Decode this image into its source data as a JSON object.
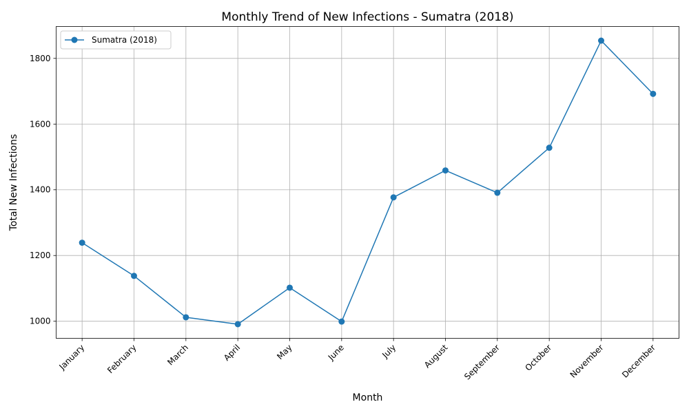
{
  "chart_data": {
    "type": "line",
    "title": "Monthly Trend of New Infections - Sumatra (2018)",
    "xlabel": "Month",
    "ylabel": "Total New Infections",
    "categories": [
      "January",
      "February",
      "March",
      "April",
      "May",
      "June",
      "July",
      "August",
      "September",
      "October",
      "November",
      "December"
    ],
    "series": [
      {
        "name": "Sumatra (2018)",
        "color": "#1f77b4",
        "marker": "circle",
        "values": [
          1239,
          1138,
          1012,
          991,
          1102,
          999,
          1377,
          1459,
          1391,
          1528,
          1854,
          1692
        ]
      }
    ],
    "ylim": [
      948,
      1897
    ],
    "yticks": [
      1000,
      1200,
      1400,
      1600,
      1800
    ],
    "grid": true,
    "legend_position": "upper-left",
    "xtick_rotation": 45
  }
}
